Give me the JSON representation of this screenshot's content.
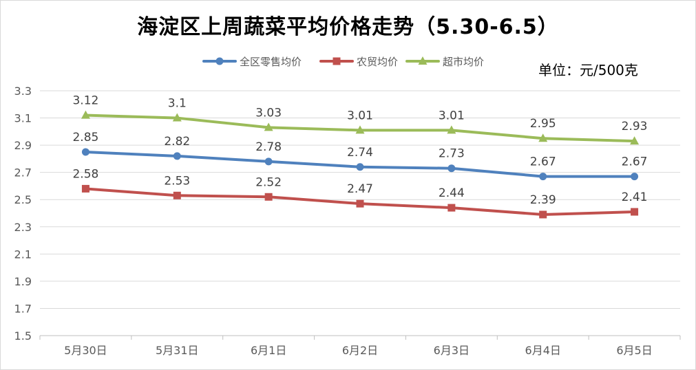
{
  "chart_data": {
    "type": "line",
    "title": "海淀区上周蔬菜平均价格走势（5.30-6.5）",
    "unit_note": "单位：元/500克",
    "xlabel": "",
    "ylabel": "",
    "categories": [
      "5月30日",
      "5月31日",
      "6月1日",
      "6月2日",
      "6月3日",
      "6月4日",
      "6月5日"
    ],
    "ylim": [
      1.5,
      3.3
    ],
    "yticks": [
      "1.5",
      "1.7",
      "1.9",
      "2.1",
      "2.3",
      "2.5",
      "2.7",
      "2.9",
      "3.1",
      "3.3"
    ],
    "grid": true,
    "legend_position": "top",
    "series": [
      {
        "name": "全区零售均价",
        "values": [
          2.85,
          2.82,
          2.78,
          2.74,
          2.73,
          2.67,
          2.67
        ],
        "labels": [
          "2.85",
          "2.82",
          "2.78",
          "2.74",
          "2.73",
          "2.67",
          "2.67"
        ],
        "color": "#4f81bd",
        "marker": "circle"
      },
      {
        "name": "农贸均价",
        "values": [
          2.58,
          2.53,
          2.52,
          2.47,
          2.44,
          2.39,
          2.41
        ],
        "labels": [
          "2.58",
          "2.53",
          "2.52",
          "2.47",
          "2.44",
          "2.39",
          "2.41"
        ],
        "color": "#c0504d",
        "marker": "square"
      },
      {
        "name": "超市均价",
        "values": [
          3.12,
          3.1,
          3.03,
          3.01,
          3.01,
          2.95,
          2.93
        ],
        "labels": [
          "3.12",
          "3.1",
          "3.03",
          "3.01",
          "3.01",
          "2.95",
          "2.93"
        ],
        "color": "#9bbb59",
        "marker": "triangle"
      }
    ]
  }
}
